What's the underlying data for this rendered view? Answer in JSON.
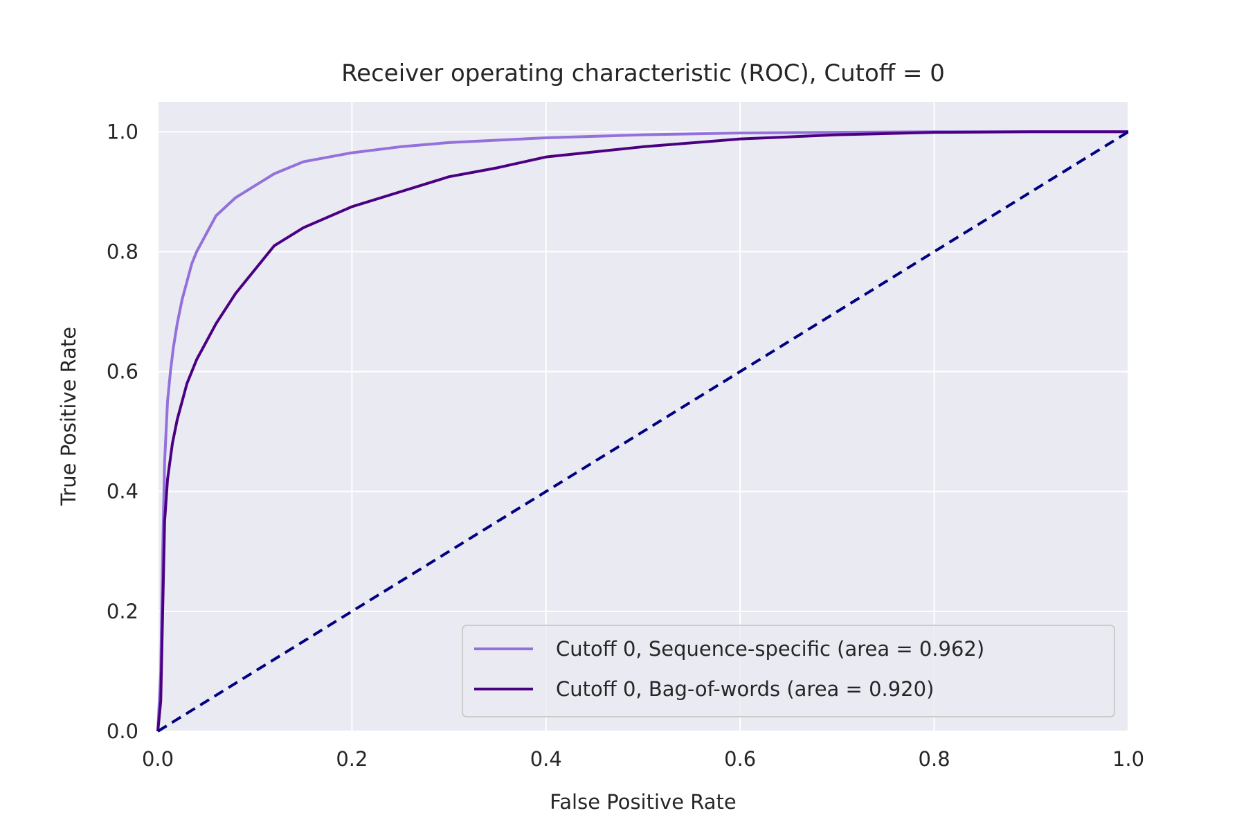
{
  "chart_data": {
    "type": "line",
    "title": "Receiver operating characteristic (ROC), Cutoff = 0",
    "xlabel": "False Positive Rate",
    "ylabel": "True Positive Rate",
    "xlim": [
      0.0,
      1.0
    ],
    "ylim": [
      0.0,
      1.05
    ],
    "x_ticks": [
      "0.0",
      "0.2",
      "0.4",
      "0.6",
      "0.8",
      "1.0"
    ],
    "y_ticks": [
      "0.0",
      "0.2",
      "0.4",
      "0.6",
      "0.8",
      "1.0"
    ],
    "grid": true,
    "legend_position": "lower-right",
    "series": [
      {
        "name": "Cutoff 0, Sequence-specific (area = 0.962)",
        "color": "#9370DB",
        "line_style": "solid",
        "x": [
          0.0,
          0.003,
          0.005,
          0.007,
          0.01,
          0.013,
          0.016,
          0.02,
          0.025,
          0.03,
          0.035,
          0.04,
          0.05,
          0.06,
          0.07,
          0.08,
          0.1,
          0.12,
          0.15,
          0.2,
          0.25,
          0.3,
          0.4,
          0.5,
          0.6,
          0.7,
          0.8,
          0.9,
          1.0
        ],
        "y": [
          0.0,
          0.1,
          0.3,
          0.45,
          0.55,
          0.6,
          0.64,
          0.68,
          0.72,
          0.75,
          0.78,
          0.8,
          0.83,
          0.86,
          0.875,
          0.89,
          0.91,
          0.93,
          0.95,
          0.965,
          0.975,
          0.982,
          0.99,
          0.995,
          0.998,
          0.999,
          1.0,
          1.0,
          1.0
        ]
      },
      {
        "name": "Cutoff 0, Bag-of-words (area = 0.920)",
        "color": "#4B0082",
        "line_style": "solid",
        "x": [
          0.0,
          0.003,
          0.005,
          0.007,
          0.01,
          0.015,
          0.02,
          0.03,
          0.04,
          0.05,
          0.06,
          0.08,
          0.1,
          0.12,
          0.15,
          0.2,
          0.25,
          0.3,
          0.35,
          0.4,
          0.5,
          0.6,
          0.7,
          0.8,
          0.9,
          1.0
        ],
        "y": [
          0.0,
          0.05,
          0.2,
          0.35,
          0.42,
          0.48,
          0.52,
          0.58,
          0.62,
          0.65,
          0.68,
          0.73,
          0.77,
          0.81,
          0.84,
          0.875,
          0.9,
          0.925,
          0.94,
          0.958,
          0.975,
          0.988,
          0.995,
          0.999,
          1.0,
          1.0
        ]
      },
      {
        "name": "",
        "color": "#000080",
        "line_style": "dashed",
        "x": [
          0.0,
          1.0
        ],
        "y": [
          0.0,
          1.0
        ]
      }
    ]
  }
}
